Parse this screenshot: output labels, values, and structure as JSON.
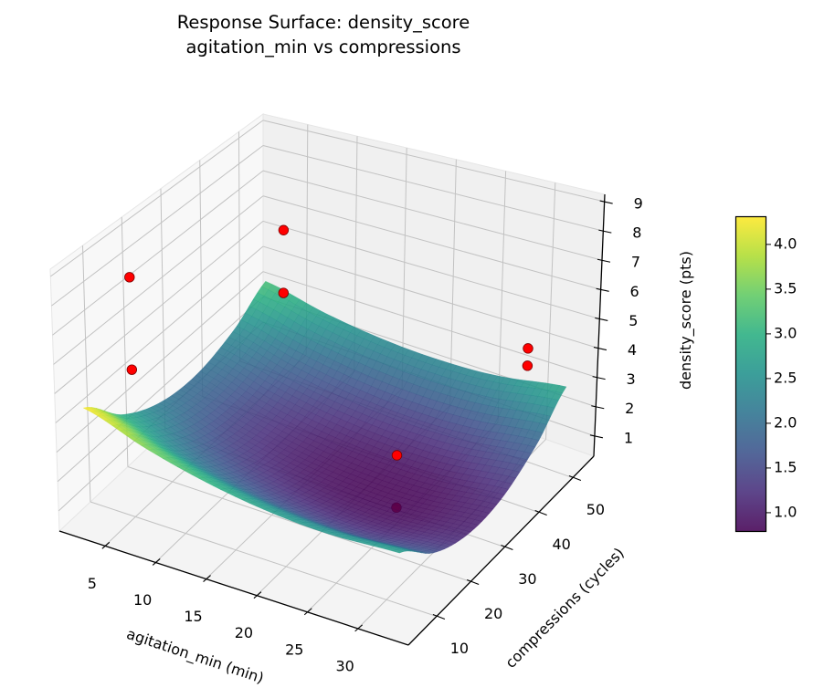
{
  "chart_data": {
    "type": "surface3d",
    "title": [
      "Response Surface: density_score",
      "agitation_min vs compressions"
    ],
    "xlabel": "agitation_min (min)",
    "ylabel": "compressions (cycles)",
    "zlabel": "density_score (pts)",
    "xlim": [
      0.5,
      35
    ],
    "ylim": [
      1.7,
      56.2
    ],
    "zlim": [
      0.31,
      9.25
    ],
    "xticks": [
      5,
      10,
      15,
      20,
      25,
      30
    ],
    "yticks": [
      10,
      20,
      30,
      40,
      50
    ],
    "zticks": [
      1,
      2,
      3,
      4,
      5,
      6,
      7,
      8,
      9
    ],
    "grid": true,
    "surface": {
      "colormap": "viridis",
      "x": [
        2,
        8,
        14,
        20,
        26,
        33
      ],
      "y": [
        5,
        15,
        25,
        35,
        45,
        53
      ],
      "z": [
        [
          4.31,
          2.94,
          2.18,
          2.01,
          2.44,
          3.22
        ],
        [
          3.59,
          2.27,
          1.55,
          1.43,
          1.91,
          2.73
        ],
        [
          3.07,
          1.8,
          1.13,
          1.05,
          1.58,
          2.44
        ],
        [
          2.75,
          1.53,
          0.9,
          0.88,
          1.45,
          2.35
        ],
        [
          2.63,
          1.45,
          0.88,
          0.9,
          1.53,
          2.46
        ],
        [
          2.74,
          1.62,
          1.1,
          1.18,
          1.86,
          2.84
        ]
      ]
    },
    "scatter": {
      "color": "#ff0000",
      "points": [
        {
          "x": 5,
          "y": 10,
          "z": 8.6
        },
        {
          "x": 5,
          "y": 10,
          "z": 5.4
        },
        {
          "x": 5,
          "y": 50,
          "z": 5.9
        },
        {
          "x": 5,
          "y": 50,
          "z": 3.5
        },
        {
          "x": 30,
          "y": 50,
          "z": 4.2
        },
        {
          "x": 30,
          "y": 50,
          "z": 3.6
        },
        {
          "x": 24,
          "y": 30,
          "z": 2.2
        },
        {
          "x": 24,
          "y": 30,
          "z": 0.4
        }
      ]
    },
    "colorbar": {
      "range": [
        0.79,
        4.31
      ],
      "ticks": [
        "1.0",
        "1.5",
        "2.0",
        "2.5",
        "3.0",
        "3.5",
        "4.0"
      ]
    }
  }
}
